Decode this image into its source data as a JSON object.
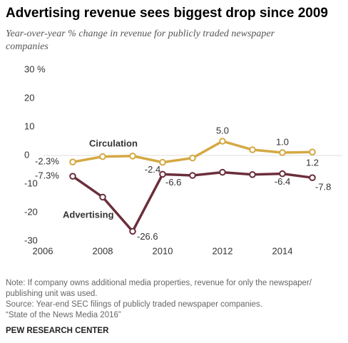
{
  "chart_data": {
    "type": "line",
    "title": "Advertising revenue sees biggest drop since 2009",
    "subtitle": [
      "Year-over-year % change in revenue for publicly traded newspaper",
      "companies"
    ],
    "x": [
      2007,
      2008,
      2009,
      2010,
      2011,
      2012,
      2013,
      2014,
      2015
    ],
    "series": [
      {
        "name": "Circulation",
        "color": "#d4a843",
        "values": [
          -2.3,
          -0.4,
          -0.2,
          -2.4,
          -0.9,
          5.0,
          2.0,
          1.0,
          1.2
        ],
        "value_labels": [
          "-2.3%",
          null,
          null,
          "-2.4",
          null,
          "5.0",
          null,
          "1.0",
          "1.2"
        ]
      },
      {
        "name": "Advertising",
        "color": "#6b2e3b",
        "values": [
          -7.3,
          -14.6,
          -26.6,
          -6.6,
          -7.0,
          -5.9,
          -6.7,
          -6.4,
          -7.8
        ],
        "value_labels": [
          "-7.3%",
          null,
          "-26.6",
          "-6.6",
          null,
          null,
          null,
          "-6.4",
          "-7.8"
        ]
      }
    ],
    "xlim": [
      2006,
      2016
    ],
    "xticks": [
      2006,
      2008,
      2010,
      2012,
      2014
    ],
    "ylim": [
      -30,
      30
    ],
    "yticks": [
      {
        "value": 30,
        "label": "30 %"
      },
      20,
      10,
      0,
      -10,
      -20,
      -30
    ],
    "zero_line": true,
    "notes": [
      "Note: If company owns additional media properties, revenue for only the newspaper/",
      "publishing unit was used.",
      "Source: Year-end SEC filings of publicly traded newspaper companies.",
      "“State of the News Media 2016”"
    ],
    "credit": "PEW RESEARCH CENTER"
  }
}
